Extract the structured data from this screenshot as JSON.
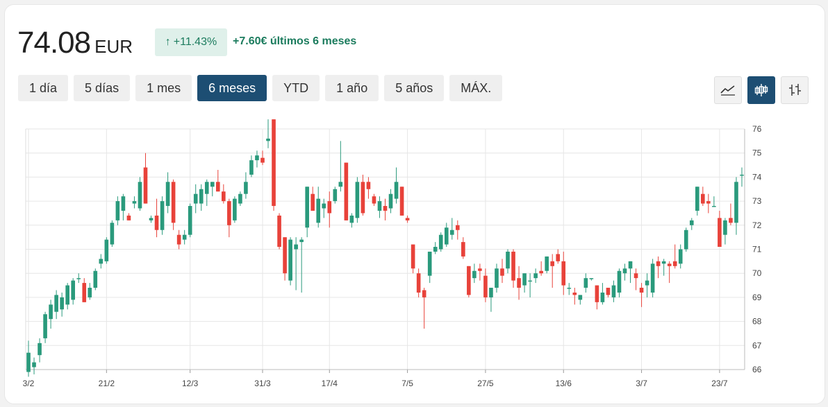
{
  "header": {
    "price": "74.08",
    "currency": "EUR",
    "change_arrow": "↑",
    "change_pct": "+11.43%",
    "change_text": "+7.60€ últimos 6 meses"
  },
  "range_tabs": [
    {
      "label": "1 día",
      "active": false
    },
    {
      "label": "5 días",
      "active": false
    },
    {
      "label": "1 mes",
      "active": false
    },
    {
      "label": "6 meses",
      "active": true
    },
    {
      "label": "YTD",
      "active": false
    },
    {
      "label": "1 año",
      "active": false
    },
    {
      "label": "5 años",
      "active": false
    },
    {
      "label": "MÁX.",
      "active": false
    }
  ],
  "chart_types": [
    {
      "icon": "line-chart-icon",
      "active": false
    },
    {
      "icon": "candlestick-icon",
      "active": true
    },
    {
      "icon": "ohlc-bars-icon",
      "active": false
    }
  ],
  "colors": {
    "up": "#2a9a7c",
    "down": "#e8423a",
    "accent": "#1d4e73",
    "positive_text": "#1c7c5e"
  },
  "chart_data": {
    "type": "candlestick",
    "ylim": [
      66,
      76
    ],
    "yticks": [
      66,
      67,
      68,
      69,
      70,
      71,
      72,
      73,
      74,
      75,
      76
    ],
    "y_axis_position": "right",
    "grid": true,
    "xticks": [
      {
        "label": "3/2",
        "index": 0
      },
      {
        "label": "21/2",
        "index": 14
      },
      {
        "label": "12/3",
        "index": 29
      },
      {
        "label": "31/3",
        "index": 42
      },
      {
        "label": "17/4",
        "index": 54
      },
      {
        "label": "7/5",
        "index": 68
      },
      {
        "label": "27/5",
        "index": 82
      },
      {
        "label": "13/6",
        "index": 96
      },
      {
        "label": "3/7",
        "index": 110
      },
      {
        "label": "23/7",
        "index": 124
      }
    ],
    "ohlc": [
      [
        65.9,
        67.2,
        65.7,
        66.7
      ],
      [
        66.1,
        66.5,
        65.8,
        66.3
      ],
      [
        66.6,
        67.3,
        66.3,
        67.1
      ],
      [
        67.3,
        68.4,
        67.1,
        68.3
      ],
      [
        68.1,
        68.9,
        67.7,
        68.7
      ],
      [
        68.4,
        69.3,
        68.1,
        69.1
      ],
      [
        68.5,
        69.2,
        68.2,
        69.0
      ],
      [
        68.7,
        69.6,
        68.5,
        69.5
      ],
      [
        68.9,
        69.8,
        68.7,
        69.7
      ],
      [
        69.8,
        70.0,
        69.6,
        69.8
      ],
      [
        69.6,
        69.8,
        68.8,
        68.8
      ],
      [
        69.0,
        69.6,
        68.9,
        69.4
      ],
      [
        69.4,
        70.2,
        69.3,
        70.1
      ],
      [
        70.4,
        70.8,
        70.2,
        70.6
      ],
      [
        70.5,
        71.5,
        70.4,
        71.4
      ],
      [
        71.2,
        72.2,
        71.1,
        72.1
      ],
      [
        72.2,
        73.2,
        72.0,
        73.0
      ],
      [
        72.6,
        73.3,
        72.2,
        73.2
      ],
      [
        72.4,
        72.5,
        72.2,
        72.2
      ],
      [
        72.9,
        73.2,
        72.7,
        73.0
      ],
      [
        72.7,
        74.0,
        72.6,
        73.8
      ],
      [
        74.4,
        75.0,
        72.9,
        72.9
      ],
      [
        72.2,
        72.4,
        72.1,
        72.3
      ],
      [
        72.4,
        73.1,
        71.5,
        71.8
      ],
      [
        71.8,
        73.2,
        71.6,
        73.0
      ],
      [
        72.8,
        74.2,
        72.5,
        73.8
      ],
      [
        73.8,
        73.9,
        71.8,
        72.1
      ],
      [
        71.6,
        71.8,
        71.0,
        71.2
      ],
      [
        71.4,
        71.8,
        71.2,
        71.6
      ],
      [
        71.6,
        72.9,
        71.5,
        72.8
      ],
      [
        72.9,
        73.7,
        72.5,
        73.3
      ],
      [
        72.9,
        73.7,
        72.6,
        73.5
      ],
      [
        73.3,
        73.9,
        72.8,
        73.8
      ],
      [
        73.6,
        73.8,
        73.2,
        73.8
      ],
      [
        73.8,
        74.3,
        73.4,
        73.4
      ],
      [
        73.4,
        73.7,
        72.9,
        73.0
      ],
      [
        73.0,
        73.1,
        71.5,
        72.0
      ],
      [
        72.2,
        73.2,
        72.1,
        73.1
      ],
      [
        72.9,
        73.4,
        72.8,
        73.3
      ],
      [
        73.3,
        74.2,
        73.1,
        73.8
      ],
      [
        74.1,
        74.9,
        74.0,
        74.7
      ],
      [
        74.7,
        75.1,
        74.4,
        74.9
      ],
      [
        74.8,
        75.1,
        74.5,
        74.6
      ],
      [
        75.5,
        76.4,
        75.2,
        75.6
      ],
      [
        76.4,
        76.4,
        72.6,
        72.8
      ],
      [
        72.4,
        72.5,
        71.0,
        71.1
      ],
      [
        71.5,
        71.5,
        69.7,
        70.0
      ],
      [
        69.7,
        71.5,
        69.5,
        71.4
      ],
      [
        71.0,
        71.5,
        69.3,
        71.2
      ],
      [
        71.3,
        71.5,
        69.2,
        71.4
      ],
      [
        71.9,
        73.6,
        71.5,
        73.6
      ],
      [
        73.3,
        73.6,
        72.6,
        72.6
      ],
      [
        72.1,
        73.6,
        71.9,
        73.1
      ],
      [
        72.7,
        73.1,
        72.3,
        72.9
      ],
      [
        73.0,
        73.4,
        71.9,
        72.5
      ],
      [
        73.0,
        73.6,
        72.9,
        73.5
      ],
      [
        73.6,
        75.5,
        73.4,
        73.8
      ],
      [
        74.6,
        74.6,
        72.2,
        72.2
      ],
      [
        72.1,
        72.5,
        71.9,
        72.4
      ],
      [
        72.3,
        74.0,
        72.1,
        73.8
      ],
      [
        73.8,
        74.1,
        72.4,
        72.5
      ],
      [
        73.8,
        74.0,
        73.1,
        73.5
      ],
      [
        73.2,
        73.3,
        72.8,
        72.9
      ],
      [
        72.6,
        73.2,
        72.3,
        73.0
      ],
      [
        72.8,
        73.1,
        72.2,
        72.6
      ],
      [
        72.7,
        73.5,
        72.5,
        73.3
      ],
      [
        73.1,
        74.4,
        72.9,
        73.8
      ],
      [
        73.6,
        73.6,
        72.4,
        72.4
      ],
      [
        72.3,
        72.4,
        72.1,
        72.2
      ],
      [
        71.2,
        71.2,
        70.0,
        70.2
      ],
      [
        70.0,
        70.2,
        69.0,
        69.2
      ],
      [
        69.3,
        69.4,
        67.7,
        69.0
      ],
      [
        69.9,
        70.9,
        69.6,
        70.9
      ],
      [
        70.9,
        71.3,
        70.8,
        71.1
      ],
      [
        71.0,
        71.7,
        70.9,
        71.6
      ],
      [
        71.2,
        72.1,
        71.1,
        71.9
      ],
      [
        71.6,
        72.3,
        71.4,
        71.8
      ],
      [
        72.0,
        72.2,
        71.4,
        71.8
      ],
      [
        71.3,
        71.5,
        70.6,
        70.7
      ],
      [
        70.3,
        70.3,
        69.0,
        69.1
      ],
      [
        69.8,
        70.4,
        69.6,
        70.1
      ],
      [
        70.2,
        70.4,
        69.7,
        70.1
      ],
      [
        69.9,
        70.2,
        68.8,
        69.0
      ],
      [
        69.0,
        69.4,
        68.4,
        69.4
      ],
      [
        69.4,
        70.4,
        69.2,
        70.2
      ],
      [
        70.2,
        70.6,
        69.6,
        69.9
      ],
      [
        70.2,
        71.0,
        70.0,
        70.9
      ],
      [
        70.9,
        71.0,
        69.4,
        69.7
      ],
      [
        69.8,
        70.3,
        68.9,
        69.4
      ],
      [
        69.5,
        70.0,
        69.2,
        70.0
      ],
      [
        69.7,
        70.0,
        69.0,
        69.7
      ],
      [
        69.8,
        70.2,
        69.6,
        70.0
      ],
      [
        70.1,
        70.5,
        69.9,
        70.0
      ],
      [
        70.1,
        70.7,
        70.0,
        70.7
      ],
      [
        70.5,
        70.8,
        69.4,
        70.3
      ],
      [
        70.8,
        71.0,
        70.4,
        70.5
      ],
      [
        70.5,
        70.9,
        69.1,
        69.5
      ],
      [
        69.4,
        69.6,
        69.1,
        69.4
      ],
      [
        69.2,
        69.4,
        68.7,
        69.1
      ],
      [
        68.9,
        69.1,
        68.7,
        69.1
      ],
      [
        69.4,
        70.0,
        69.2,
        69.8
      ],
      [
        69.8,
        69.8,
        69.7,
        69.8
      ],
      [
        69.5,
        69.5,
        68.5,
        68.8
      ],
      [
        68.8,
        69.6,
        68.7,
        69.2
      ],
      [
        69.4,
        69.4,
        69.0,
        69.1
      ],
      [
        69.0,
        69.7,
        68.8,
        69.5
      ],
      [
        69.2,
        70.2,
        69.0,
        70.1
      ],
      [
        70.0,
        70.4,
        69.7,
        70.2
      ],
      [
        70.2,
        70.5,
        69.6,
        70.5
      ],
      [
        70.0,
        70.2,
        69.3,
        69.8
      ],
      [
        69.4,
        69.6,
        68.6,
        69.2
      ],
      [
        69.5,
        70.0,
        69.0,
        69.7
      ],
      [
        69.2,
        70.6,
        69.0,
        70.4
      ],
      [
        70.5,
        70.7,
        69.8,
        70.3
      ],
      [
        70.4,
        70.6,
        69.9,
        70.5
      ],
      [
        70.4,
        70.5,
        69.6,
        70.3
      ],
      [
        70.5,
        71.2,
        70.2,
        70.3
      ],
      [
        70.4,
        71.2,
        70.2,
        71.0
      ],
      [
        71.0,
        71.9,
        70.9,
        71.8
      ],
      [
        72.0,
        72.3,
        71.8,
        72.2
      ],
      [
        72.6,
        73.6,
        72.4,
        73.6
      ],
      [
        73.3,
        73.6,
        72.8,
        72.9
      ],
      [
        73.0,
        73.3,
        72.5,
        72.9
      ],
      [
        72.8,
        73.2,
        72.8,
        72.8
      ],
      [
        72.3,
        72.6,
        71.1,
        71.1
      ],
      [
        71.6,
        72.3,
        71.2,
        72.2
      ],
      [
        72.3,
        72.9,
        72.0,
        72.1
      ],
      [
        72.1,
        74.0,
        71.6,
        73.8
      ],
      [
        74.1,
        74.4,
        73.6,
        74.1
      ]
    ]
  }
}
